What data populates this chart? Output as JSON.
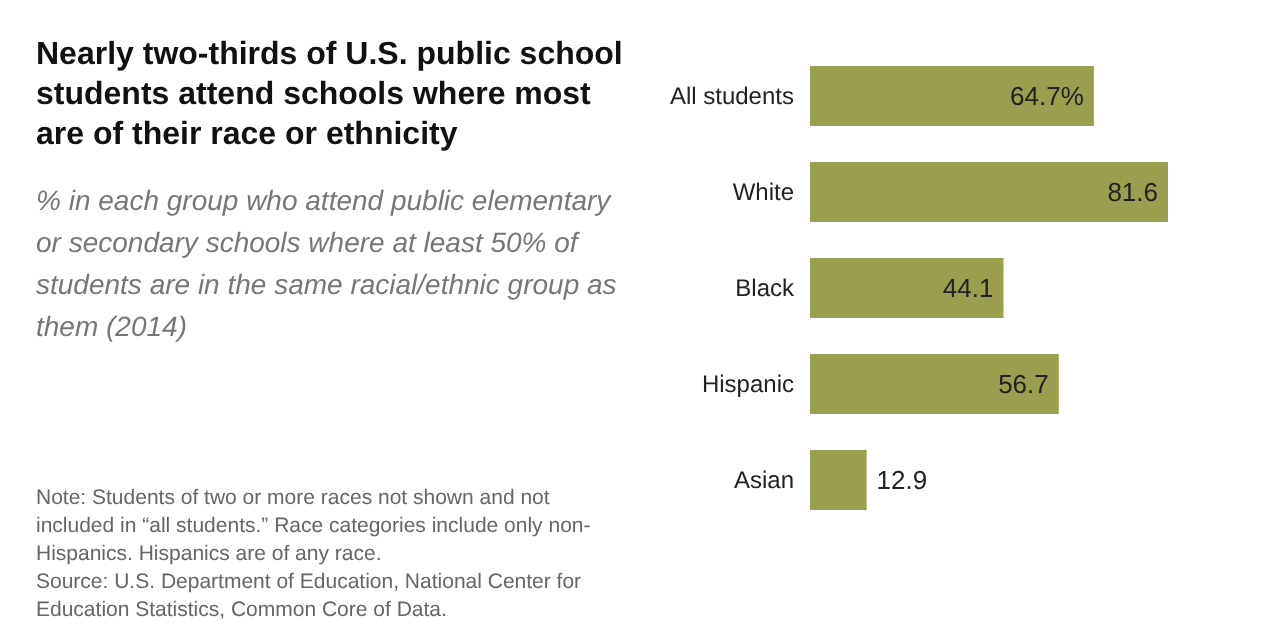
{
  "chart_data": {
    "type": "bar",
    "orientation": "horizontal",
    "title": "Nearly two-thirds of U.S. public school students attend schools where most are of their race or ethnicity",
    "subtitle": "% in each group who attend public elementary or secondary schools where at least 50% of students are in the same racial/ethnic group as them (2014)",
    "categories": [
      "All students",
      "White",
      "Black",
      "Hispanic",
      "Asian"
    ],
    "values": [
      64.7,
      81.6,
      44.1,
      56.7,
      12.9
    ],
    "value_labels": [
      "64.7%",
      "81.6",
      "44.1",
      "56.7",
      "12.9"
    ],
    "color": "#9a9f4f",
    "annotations": [
      "Note: Students of two or more races not shown and not included in “all students.” Race categories include only non-Hispanics. Hispanics are of any race.",
      "Source: U.S. Department of Education, National Center for Education Statistics, Common Core of Data."
    ]
  }
}
